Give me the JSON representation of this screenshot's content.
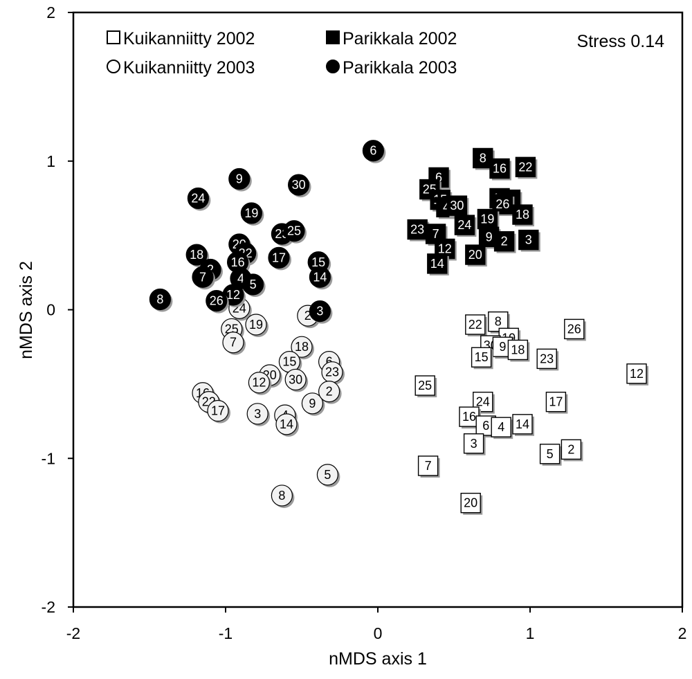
{
  "chart_data": {
    "type": "scatter",
    "xlabel": "nMDS axis 1",
    "ylabel": "nMDS axis 2",
    "xlim": [
      -2,
      2
    ],
    "ylim": [
      -2,
      2
    ],
    "xticks": [
      "-2",
      "-1",
      "0",
      "1",
      "2"
    ],
    "yticks": [
      "2",
      "1",
      "0",
      "-1",
      "-2"
    ],
    "grid": false,
    "legend_position": "top-left",
    "annotation": "Stress 0.14",
    "series": [
      {
        "name": "Kuikanniitty 2002",
        "marker": "square",
        "fill": "#ffffff",
        "text_color": "#000000",
        "points": [
          {
            "label": "22",
            "x": 0.64,
            "y": -0.1
          },
          {
            "label": "8",
            "x": 0.79,
            "y": -0.08
          },
          {
            "label": "19",
            "x": 0.86,
            "y": -0.19
          },
          {
            "label": "30",
            "x": 0.74,
            "y": -0.24
          },
          {
            "label": "9",
            "x": 0.82,
            "y": -0.25
          },
          {
            "label": "18",
            "x": 0.92,
            "y": -0.27
          },
          {
            "label": "15",
            "x": 0.68,
            "y": -0.32
          },
          {
            "label": "23",
            "x": 1.11,
            "y": -0.33
          },
          {
            "label": "26",
            "x": 1.29,
            "y": -0.13
          },
          {
            "label": "12",
            "x": 1.7,
            "y": -0.43
          },
          {
            "label": "25",
            "x": 0.31,
            "y": -0.51
          },
          {
            "label": "24",
            "x": 0.69,
            "y": -0.62
          },
          {
            "label": "17",
            "x": 1.17,
            "y": -0.62
          },
          {
            "label": "16",
            "x": 0.6,
            "y": -0.72
          },
          {
            "label": "6",
            "x": 0.71,
            "y": -0.78
          },
          {
            "label": "4",
            "x": 0.81,
            "y": -0.79
          },
          {
            "label": "14",
            "x": 0.95,
            "y": -0.77
          },
          {
            "label": "3",
            "x": 0.63,
            "y": -0.9
          },
          {
            "label": "5",
            "x": 1.13,
            "y": -0.97
          },
          {
            "label": "2",
            "x": 1.27,
            "y": -0.94
          },
          {
            "label": "7",
            "x": 0.33,
            "y": -1.05
          },
          {
            "label": "20",
            "x": 0.61,
            "y": -1.3
          }
        ]
      },
      {
        "name": "Kuikanniitty 2003",
        "marker": "circle",
        "fill": "#f2f2f2",
        "text_color": "#000000",
        "points": [
          {
            "label": "24",
            "x": -0.91,
            "y": 0.01
          },
          {
            "label": "25",
            "x": -0.96,
            "y": -0.13
          },
          {
            "label": "19",
            "x": -0.8,
            "y": -0.1
          },
          {
            "label": "7",
            "x": -0.95,
            "y": -0.22
          },
          {
            "label": "2",
            "x": -0.46,
            "y": -0.04
          },
          {
            "label": "18",
            "x": -0.5,
            "y": -0.25
          },
          {
            "label": "15",
            "x": -0.58,
            "y": -0.35
          },
          {
            "label": "6",
            "x": -0.32,
            "y": -0.35
          },
          {
            "label": "23",
            "x": -0.3,
            "y": -0.42
          },
          {
            "label": "20",
            "x": -0.71,
            "y": -0.44
          },
          {
            "label": "12",
            "x": -0.78,
            "y": -0.49
          },
          {
            "label": "30",
            "x": -0.54,
            "y": -0.47
          },
          {
            "label": "16",
            "x": -1.15,
            "y": -0.56
          },
          {
            "label": "22",
            "x": -1.11,
            "y": -0.62
          },
          {
            "label": "17",
            "x": -1.05,
            "y": -0.68
          },
          {
            "label": "3",
            "x": -0.79,
            "y": -0.7
          },
          {
            "label": "4",
            "x": -0.61,
            "y": -0.71
          },
          {
            "label": "14",
            "x": -0.6,
            "y": -0.77
          },
          {
            "label": "9",
            "x": -0.43,
            "y": -0.63
          },
          {
            "label": "2",
            "x": -0.32,
            "y": -0.55
          },
          {
            "label": "5",
            "x": -0.33,
            "y": -1.11
          },
          {
            "label": "8",
            "x": -0.63,
            "y": -1.25
          }
        ]
      },
      {
        "name": "Parikkala 2002",
        "marker": "square",
        "fill": "#000000",
        "text_color": "#ffffff",
        "points": [
          {
            "label": "8",
            "x": 0.69,
            "y": 1.02
          },
          {
            "label": "16",
            "x": 0.8,
            "y": 0.95
          },
          {
            "label": "22",
            "x": 0.97,
            "y": 0.96
          },
          {
            "label": "6",
            "x": 0.4,
            "y": 0.89
          },
          {
            "label": "25",
            "x": 0.34,
            "y": 0.81
          },
          {
            "label": "15",
            "x": 0.41,
            "y": 0.74
          },
          {
            "label": "4",
            "x": 0.45,
            "y": 0.69
          },
          {
            "label": "30",
            "x": 0.52,
            "y": 0.7
          },
          {
            "label": "17",
            "x": 0.8,
            "y": 0.75
          },
          {
            "label": "5",
            "x": 0.87,
            "y": 0.74
          },
          {
            "label": "26",
            "x": 0.82,
            "y": 0.71
          },
          {
            "label": "18",
            "x": 0.95,
            "y": 0.64
          },
          {
            "label": "19",
            "x": 0.72,
            "y": 0.61
          },
          {
            "label": "24",
            "x": 0.57,
            "y": 0.57
          },
          {
            "label": "23",
            "x": 0.26,
            "y": 0.54
          },
          {
            "label": "7",
            "x": 0.38,
            "y": 0.51
          },
          {
            "label": "9",
            "x": 0.73,
            "y": 0.49
          },
          {
            "label": "2",
            "x": 0.83,
            "y": 0.46
          },
          {
            "label": "3",
            "x": 0.99,
            "y": 0.47
          },
          {
            "label": "12",
            "x": 0.44,
            "y": 0.41
          },
          {
            "label": "20",
            "x": 0.64,
            "y": 0.37
          },
          {
            "label": "14",
            "x": 0.39,
            "y": 0.31
          }
        ]
      },
      {
        "name": "Parikkala 2003",
        "marker": "circle",
        "fill": "#000000",
        "text_color": "#ffffff",
        "points": [
          {
            "label": "6",
            "x": -0.03,
            "y": 1.07
          },
          {
            "label": "9",
            "x": -0.91,
            "y": 0.88
          },
          {
            "label": "30",
            "x": -0.52,
            "y": 0.84
          },
          {
            "label": "24",
            "x": -1.18,
            "y": 0.75
          },
          {
            "label": "19",
            "x": -0.83,
            "y": 0.65
          },
          {
            "label": "23",
            "x": -0.63,
            "y": 0.51
          },
          {
            "label": "25",
            "x": -0.55,
            "y": 0.53
          },
          {
            "label": "20",
            "x": -0.91,
            "y": 0.44
          },
          {
            "label": "22",
            "x": -0.87,
            "y": 0.38
          },
          {
            "label": "18",
            "x": -1.19,
            "y": 0.37
          },
          {
            "label": "17",
            "x": -0.65,
            "y": 0.35
          },
          {
            "label": "16",
            "x": -0.92,
            "y": 0.32
          },
          {
            "label": "2",
            "x": -1.1,
            "y": 0.27
          },
          {
            "label": "15",
            "x": -0.39,
            "y": 0.32
          },
          {
            "label": "7",
            "x": -1.15,
            "y": 0.22
          },
          {
            "label": "4",
            "x": -0.9,
            "y": 0.21
          },
          {
            "label": "5",
            "x": -0.82,
            "y": 0.17
          },
          {
            "label": "14",
            "x": -0.38,
            "y": 0.22
          },
          {
            "label": "12",
            "x": -0.95,
            "y": 0.1
          },
          {
            "label": "26",
            "x": -1.06,
            "y": 0.06
          },
          {
            "label": "8",
            "x": -1.43,
            "y": 0.07
          },
          {
            "label": "3",
            "x": -0.38,
            "y": -0.01
          }
        ]
      }
    ]
  }
}
